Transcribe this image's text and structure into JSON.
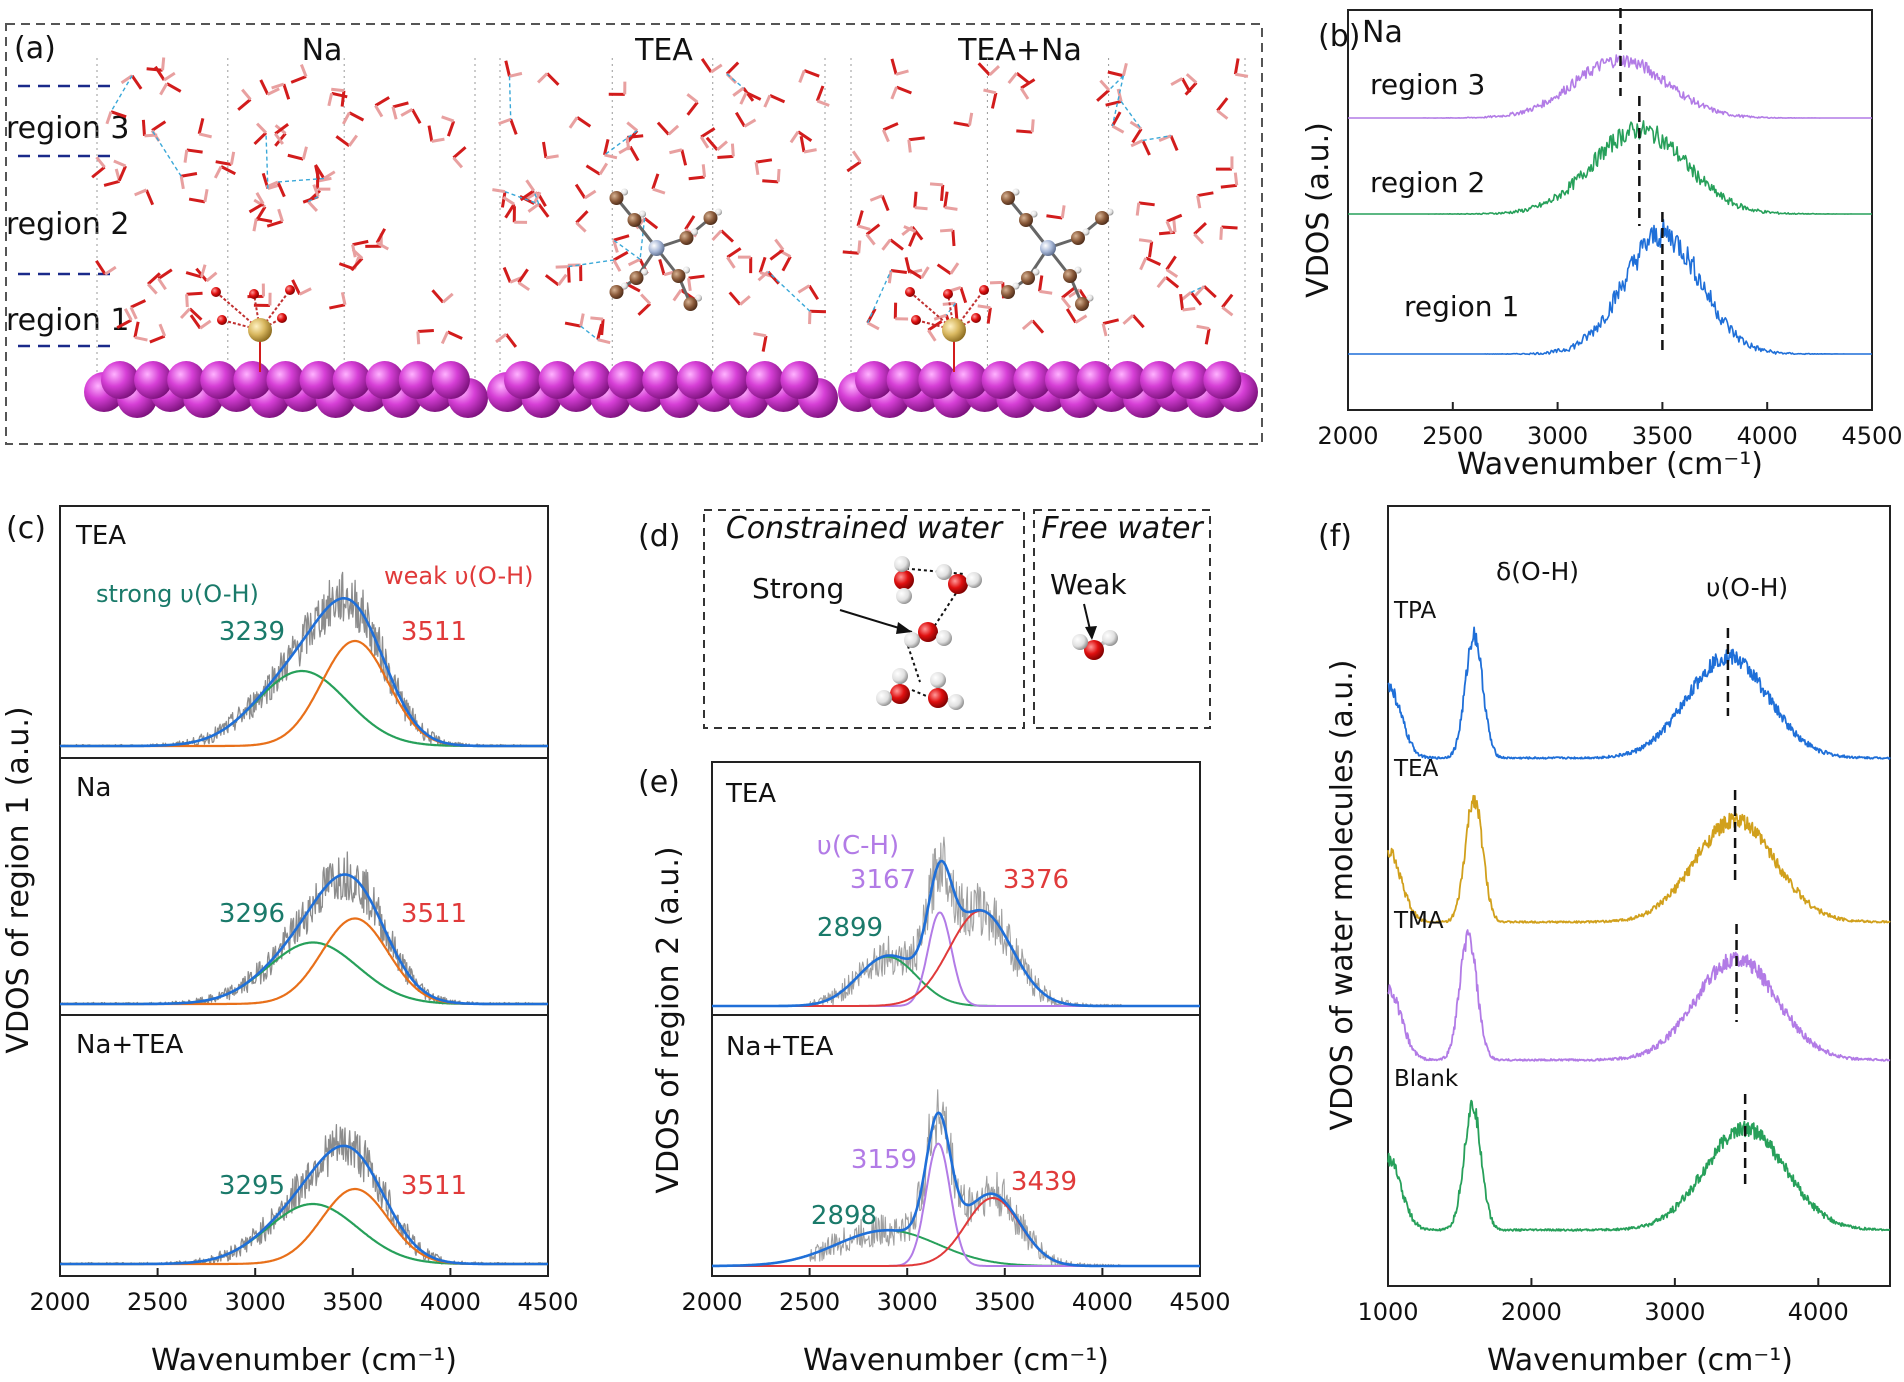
{
  "panels": {
    "a": {
      "label": "(a)",
      "titles": [
        "Na",
        "TEA",
        "TEA+Na"
      ],
      "regions": [
        "region 3",
        "region 2",
        "region 1"
      ]
    },
    "b": {
      "label": "(b)",
      "inset": "Na",
      "series_labels": [
        "region 3",
        "region 2",
        "region 1"
      ],
      "ylabel": "VDOS (a.u.)",
      "xlabel": "Wavenumber (cm⁻¹)",
      "ticks": [
        "2000",
        "2500",
        "3000",
        "3500",
        "4000",
        "4500"
      ]
    },
    "c": {
      "label": "(c)",
      "subplots": [
        "TEA",
        "Na",
        "Na+TEA"
      ],
      "strong_label": "strong υ(O-H)",
      "weak_label": "weak υ(O-H)",
      "peaks": [
        [
          "3239",
          "3511"
        ],
        [
          "3296",
          "3511"
        ],
        [
          "3295",
          "3511"
        ]
      ],
      "ylabel": "VDOS of region 1  (a.u.)",
      "xlabel": "Wavenumber (cm⁻¹)",
      "ticks": [
        "2000",
        "2500",
        "3000",
        "3500",
        "4000",
        "4500"
      ]
    },
    "d": {
      "label": "(d)",
      "left_title": "Constrained water",
      "right_title": "Free water",
      "strong": "Strong",
      "weak": "Weak"
    },
    "e": {
      "label": "(e)",
      "subplots": [
        "TEA",
        "Na+TEA"
      ],
      "ch_label": "υ(C-H)",
      "peaks": [
        [
          "2899",
          "3167",
          "3376"
        ],
        [
          "2898",
          "3159",
          "3439"
        ]
      ],
      "ylabel": "VDOS of region 2 (a.u.)",
      "xlabel": "Wavenumber (cm⁻¹)",
      "ticks": [
        "2000",
        "2500",
        "3000",
        "3500",
        "4000",
        "4500"
      ]
    },
    "f": {
      "label": "(f)",
      "bend_label": "δ(O-H)",
      "stretch_label": "υ(O-H)",
      "series_labels": [
        "TPA",
        "TEA",
        "TMA",
        "Blank"
      ],
      "ylabel": "VDOS of water molecules (a.u.)",
      "xlabel": "Wavenumber (cm⁻¹)",
      "ticks": [
        "1000",
        "2000",
        "3000",
        "4000"
      ]
    }
  },
  "colors": {
    "blue": "#1f6fd8",
    "green": "#27a05a",
    "purple": "#b27be6",
    "orange": "#e8701a",
    "gold": "#d1a01c",
    "red": "#e03a3a",
    "teal": "#1a7a6a",
    "gray": "#8c8c8c",
    "magenta": "#d63fd6"
  },
  "chart_data": [
    {
      "panel": "b",
      "type": "line",
      "xlim": [
        2000,
        4500
      ],
      "series": [
        {
          "name": "region 3",
          "peak": 3300,
          "fwhm": 520
        },
        {
          "name": "region 2",
          "peak": 3390,
          "fwhm": 520
        },
        {
          "name": "region 1",
          "peak": 3500,
          "fwhm": 430
        }
      ],
      "markers": [
        3300,
        3390,
        3500
      ]
    },
    {
      "panel": "c",
      "type": "line",
      "xlim": [
        2000,
        4500
      ],
      "subplots": [
        {
          "name": "TEA",
          "strong_peak": 3239,
          "weak_peak": 3511
        },
        {
          "name": "Na",
          "strong_peak": 3296,
          "weak_peak": 3511
        },
        {
          "name": "Na+TEA",
          "strong_peak": 3295,
          "weak_peak": 3511
        }
      ]
    },
    {
      "panel": "e",
      "type": "line",
      "xlim": [
        2000,
        4500
      ],
      "subplots": [
        {
          "name": "TEA",
          "peaks": [
            2899,
            3167,
            3376
          ]
        },
        {
          "name": "Na+TEA",
          "peaks": [
            2898,
            3159,
            3439
          ]
        }
      ]
    },
    {
      "panel": "f",
      "type": "line",
      "xlim": [
        1000,
        4500
      ],
      "series": [
        {
          "name": "TPA",
          "bend_peak": 1600,
          "stretch_peak": 3370
        },
        {
          "name": "TEA",
          "bend_peak": 1600,
          "stretch_peak": 3420
        },
        {
          "name": "TMA",
          "bend_peak": 1560,
          "stretch_peak": 3430
        },
        {
          "name": "Blank",
          "bend_peak": 1590,
          "stretch_peak": 3490
        }
      ]
    }
  ]
}
